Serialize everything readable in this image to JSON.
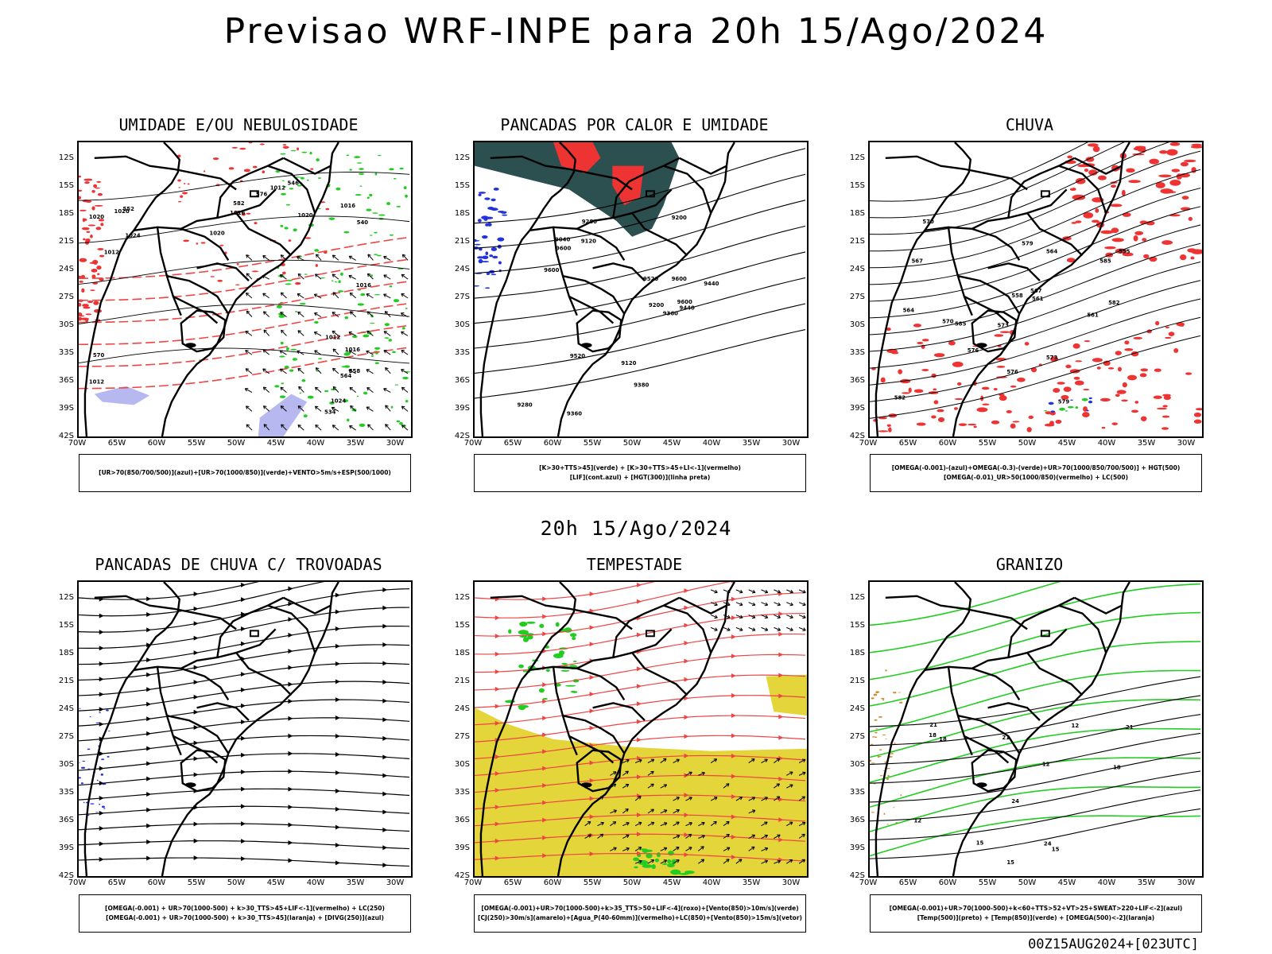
{
  "title": "Previsao WRF-INPE  para 20h 15/Ago/2024",
  "subtitle": "20h 15/Ago/2024",
  "footer": "00Z15AUG2024+[023UTC]",
  "axis": {
    "lat_ticks": [
      "12S",
      "15S",
      "18S",
      "21S",
      "24S",
      "27S",
      "30S",
      "33S",
      "36S",
      "39S",
      "42S"
    ],
    "lon_ticks": [
      "70W",
      "65W",
      "60W",
      "55W",
      "50W",
      "45W",
      "40W",
      "35W",
      "30W"
    ]
  },
  "panels": [
    {
      "title": "UMIDADE E/OU NEBULOSIDADE",
      "legend": [
        "[UR>70(850/700/500)](azul)+[UR>70(1000/850)](verde)+VENTO>5m/s+ESP(500/1000)"
      ],
      "labels": [
        "1012",
        "1012",
        "1012",
        "1016",
        "1016",
        "1020",
        "1020",
        "1024",
        "1024",
        "1016",
        "1012",
        "1016",
        "1020",
        "570",
        "576",
        "564",
        "558",
        "552",
        "546",
        "540",
        "534",
        "582",
        "1020"
      ]
    },
    {
      "title": "PANCADAS POR CALOR E UMIDADE",
      "legend": [
        "[K>30+TTS>45](verde) + [K>30+TTS>45+LI<-1](vermelho)",
        "[LIF](cont.azul) + [HGT(300)](linha preta)"
      ],
      "labels": [
        "9600",
        "9600",
        "9600",
        "9600",
        "9520",
        "9520",
        "9440",
        "9440",
        "9360",
        "9360",
        "9280",
        "9280",
        "9200",
        "9200",
        "9120",
        "9120",
        "9040",
        "9380"
      ]
    },
    {
      "title": "CHUVA",
      "legend": [
        "[OMEGA(-0.001)-(azul)+OMEGA(-0.3)-(verde)+UR>70(1000/850/700/500)] + HGT(500)",
        "[OMEGA(-0.01)_UR>50(1000/850)(vermelho) + LC(500)"
      ],
      "labels": [
        "585",
        "582",
        "579",
        "576",
        "573",
        "570",
        "567",
        "564",
        "561",
        "558",
        "555",
        "585",
        "582",
        "579",
        "576",
        "573",
        "570",
        "567",
        "564",
        "561"
      ]
    },
    {
      "title": "PANCADAS DE CHUVA C/ TROVOADAS",
      "legend": [
        "[OMEGA(-0.001) + UR>70(1000-500) + k>30_TTS>45+LIF<-1](vermelho) + LC(250)",
        "[OMEGA(-0.001) + UR>70(1000-500) + k>30_TTS>45](laranja) + [DIVG(250)](azul)"
      ],
      "labels": []
    },
    {
      "title": "TEMPESTADE",
      "legend": [
        "[OMEGA(-0.001)+UR>70(1000-500)+k>35_TTS>50+LIF<-4](roxo)+[Vento(850)>10m/s](verde)",
        "[CJ(250)>30m/s](amarelo)+[Agua_P(40-60mm)](vermelho)+LC(850)+[Vento(850)>15m/s](vetor)"
      ],
      "labels": []
    },
    {
      "title": "GRANIZO",
      "legend": [
        "[OMEGA(-0.001)+UR>70(1000-500)+k<60+TTS>52+VT>25+SWEAT>220+LIF<-2](azul)",
        "[Temp(500)](preto) + [Temp(850)](verde) + [OMEGA(500)<-2](laranja)"
      ],
      "labels": [
        "12",
        "12",
        "15",
        "15",
        "18",
        "18",
        "18",
        "21",
        "21",
        "21",
        "24",
        "24",
        "12",
        "15"
      ]
    }
  ],
  "colors": {
    "humid_green": "#22cc22",
    "red": "#ee3333",
    "blue": "#2233dd",
    "lavender": "#b8b8f0",
    "dark_teal": "#2c4f50",
    "yellow": "#e3d53a",
    "orange": "#d08a30",
    "contour_red": "#ee4444"
  }
}
